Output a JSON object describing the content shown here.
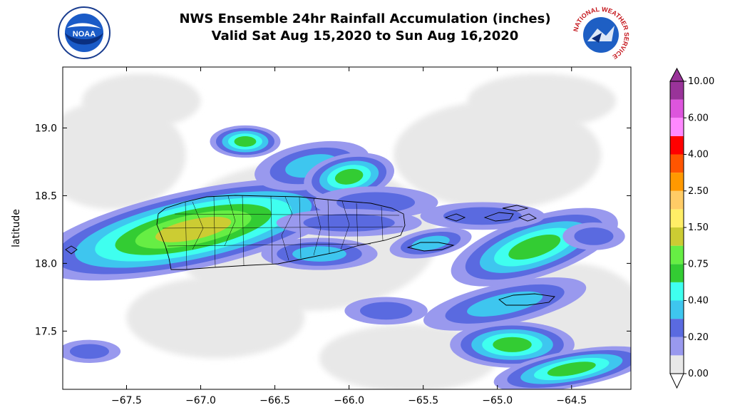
{
  "title": {
    "line1": "NWS Ensemble 24hr Rainfall Accumulation (inches)",
    "line2": "Valid Sat Aug 15,2020 to Sun Aug 16,2020"
  },
  "logos": {
    "left": {
      "name": "noaa-logo",
      "text": "NOAA"
    },
    "right": {
      "name": "nws-logo",
      "text": "NATIONAL WEATHER SERVICE"
    }
  },
  "axes": {
    "ylabel": "latitude",
    "xlim": [
      -67.93,
      -64.1
    ],
    "ylim": [
      17.07,
      19.45
    ],
    "xticks": [
      -67.5,
      -67.0,
      -66.5,
      -66.0,
      -65.5,
      -65.0,
      -64.5
    ],
    "xtick_labels": [
      "−67.5",
      "−67.0",
      "−66.5",
      "−66.0",
      "−65.5",
      "−65.0",
      "−64.5"
    ],
    "yticks": [
      17.5,
      18.0,
      18.5,
      19.0
    ],
    "ytick_labels": [
      "17.5",
      "18.0",
      "18.5",
      "19.0"
    ]
  },
  "colorbar": {
    "labels": [
      "0.00",
      "0.20",
      "0.40",
      "0.75",
      "1.50",
      "2.50",
      "4.00",
      "6.00",
      "10.00"
    ],
    "colors": [
      "#e8e8e8",
      "#9999ee",
      "#5a6ae0",
      "#3ec6ef",
      "#3fffef",
      "#33cc33",
      "#66ee44",
      "#cccc33",
      "#ffee66",
      "#ffcc66",
      "#ff9900",
      "#ff5500",
      "#ff0000",
      "#ff88ff",
      "#dd55dd",
      "#993399"
    ]
  },
  "rain_areas": [
    {
      "lon": -67.05,
      "lat": 18.25,
      "rx": 0.78,
      "ry": 0.17,
      "rot": -12,
      "level": 7
    },
    {
      "lon": -66.7,
      "lat": 18.9,
      "rx": 0.17,
      "ry": 0.07,
      "rot": 0,
      "level": 5
    },
    {
      "lon": -66.25,
      "lat": 18.72,
      "rx": 0.28,
      "ry": 0.1,
      "rot": -10,
      "level": 3
    },
    {
      "lon": -66.0,
      "lat": 18.64,
      "rx": 0.22,
      "ry": 0.1,
      "rot": -10,
      "level": 5
    },
    {
      "lon": -65.82,
      "lat": 18.45,
      "rx": 0.3,
      "ry": 0.07,
      "rot": 0,
      "level": 2
    },
    {
      "lon": -66.0,
      "lat": 18.3,
      "rx": 0.35,
      "ry": 0.06,
      "rot": 0,
      "level": 2
    },
    {
      "lon": -66.2,
      "lat": 18.07,
      "rx": 0.28,
      "ry": 0.07,
      "rot": 0,
      "level": 3
    },
    {
      "lon": -65.45,
      "lat": 18.15,
      "rx": 0.2,
      "ry": 0.06,
      "rot": -10,
      "level": 3
    },
    {
      "lon": -64.75,
      "lat": 18.12,
      "rx": 0.42,
      "ry": 0.13,
      "rot": -18,
      "level": 5
    },
    {
      "lon": -64.35,
      "lat": 18.2,
      "rx": 0.15,
      "ry": 0.06,
      "rot": 0,
      "level": 2
    },
    {
      "lon": -64.95,
      "lat": 17.7,
      "rx": 0.4,
      "ry": 0.09,
      "rot": -12,
      "level": 3
    },
    {
      "lon": -64.9,
      "lat": 17.4,
      "rx": 0.3,
      "ry": 0.1,
      "rot": 0,
      "level": 5
    },
    {
      "lon": -64.5,
      "lat": 17.22,
      "rx": 0.38,
      "ry": 0.08,
      "rot": -10,
      "level": 5
    },
    {
      "lon": -65.75,
      "lat": 17.65,
      "rx": 0.2,
      "ry": 0.06,
      "rot": 0,
      "level": 2
    },
    {
      "lon": -67.75,
      "lat": 17.35,
      "rx": 0.15,
      "ry": 0.05,
      "rot": 0,
      "level": 2
    },
    {
      "lon": -65.1,
      "lat": 18.35,
      "rx": 0.3,
      "ry": 0.06,
      "rot": 0,
      "level": 2
    }
  ]
}
